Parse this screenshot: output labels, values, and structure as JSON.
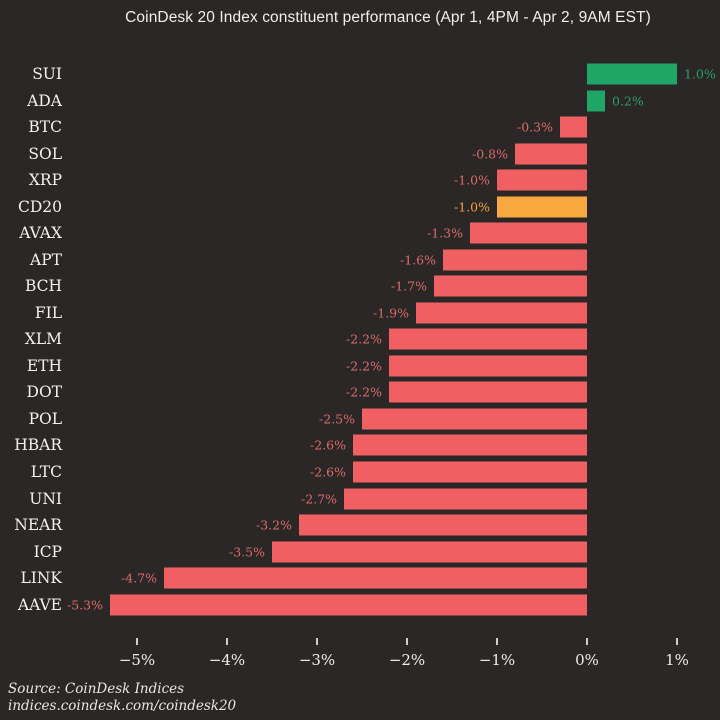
{
  "title": "CoinDesk 20 Index constituent performance (Apr 1, 4PM - Apr 2, 9AM EST)",
  "chart_data": {
    "type": "bar",
    "orientation": "horizontal",
    "title": "CoinDesk 20 Index constituent performance (Apr 1, 4PM - Apr 2, 9AM EST)",
    "categories": [
      "SUI",
      "ADA",
      "BTC",
      "SOL",
      "XRP",
      "CD20",
      "AVAX",
      "APT",
      "BCH",
      "FIL",
      "XLM",
      "ETH",
      "DOT",
      "POL",
      "HBAR",
      "LTC",
      "UNI",
      "NEAR",
      "ICP",
      "LINK",
      "AAVE"
    ],
    "values": [
      1.0,
      0.2,
      -0.3,
      -0.8,
      -1.0,
      -1.0,
      -1.3,
      -1.6,
      -1.7,
      -1.9,
      -2.2,
      -2.2,
      -2.2,
      -2.5,
      -2.6,
      -2.6,
      -2.7,
      -3.2,
      -3.5,
      -4.7,
      -5.3
    ],
    "value_labels": [
      "1.0%",
      "0.2%",
      "-0.3%",
      "-0.8%",
      "-1.0%",
      "-1.0%",
      "-1.3%",
      "-1.6%",
      "-1.7%",
      "-1.9%",
      "-2.2%",
      "-2.2%",
      "-2.2%",
      "-2.5%",
      "-2.6%",
      "-2.6%",
      "-2.7%",
      "-3.2%",
      "-3.5%",
      "-4.7%",
      "-5.3%"
    ],
    "highlight_category": "CD20",
    "colors": {
      "background": "#2b2726",
      "positive": "#1fa565",
      "negative": "#f05f62",
      "index": "#f7a83e",
      "positive_label": "#27a066",
      "negative_label": "#d96b6e",
      "index_label": "#f0a23c"
    },
    "x_tick_values": [
      -5,
      -4,
      -3,
      -2,
      -1,
      0,
      1
    ],
    "x_ticks": [
      "−5%",
      "−4%",
      "−3%",
      "−2%",
      "−1%",
      "0%",
      "1%"
    ],
    "xlim": [
      -5.75,
      1.4
    ],
    "grid": false,
    "legend": false
  },
  "footer": {
    "line1": "Source: CoinDesk Indices",
    "line2": "indices.coindesk.com/coindesk20"
  }
}
